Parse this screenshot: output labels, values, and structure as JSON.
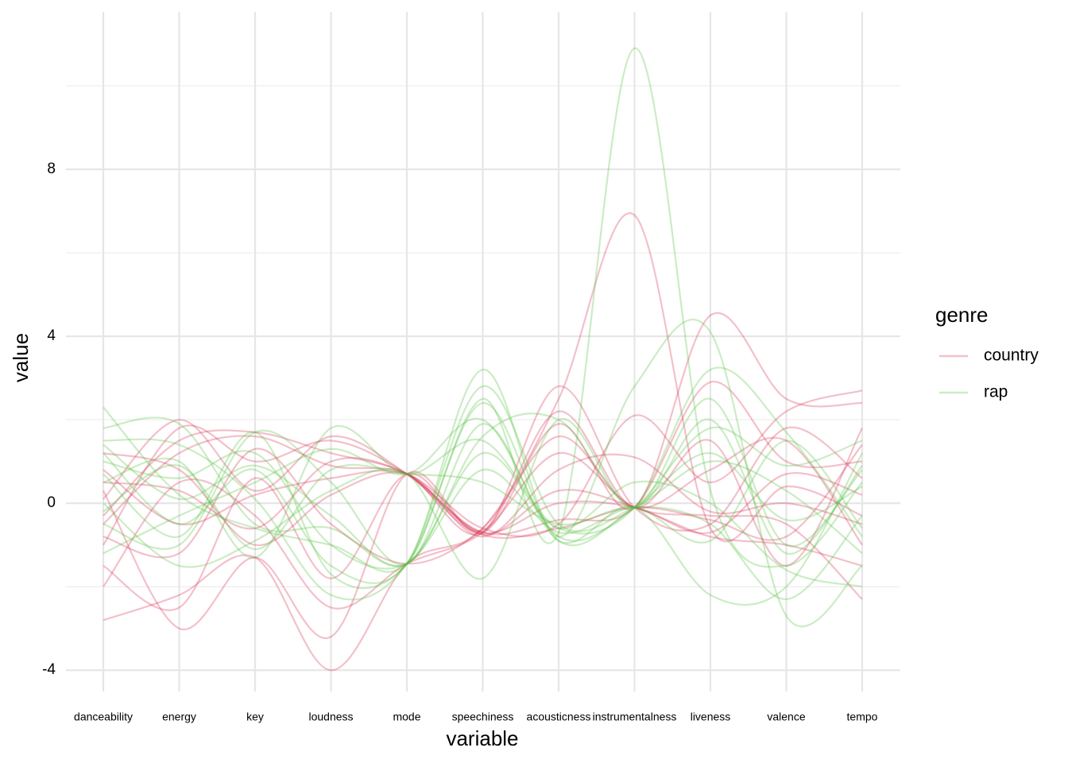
{
  "chart_data": {
    "type": "parallel",
    "x_label": "variable",
    "y_label": "value",
    "legend_title": "genre",
    "categories": [
      "danceability",
      "energy",
      "key",
      "loudness",
      "mode",
      "speechiness",
      "acousticness",
      "instrumentalness",
      "liveness",
      "valence",
      "tempo"
    ],
    "ylim": [
      -4.51,
      11.77
    ],
    "yticks": [
      -4,
      0,
      4,
      8
    ],
    "minor_yticks": [
      -2,
      2,
      6,
      10
    ],
    "grid": true,
    "opacity": 0.3,
    "legend": "right",
    "series": [
      {
        "name": "country",
        "color": "#d7304f",
        "lines": [
          [
            -0.5,
            1.2,
            1.6,
            0.9,
            0.7,
            -0.7,
            2.8,
            -0.1,
            -0.5,
            1.8,
            0.6
          ],
          [
            -2.8,
            -2.2,
            -1.3,
            -4.0,
            -1.45,
            -0.6,
            2.5,
            6.9,
            -0.6,
            0.4,
            -0.3
          ],
          [
            0.3,
            -3.0,
            -1.3,
            -3.2,
            0.7,
            -0.7,
            1.9,
            -0.1,
            4.5,
            2.5,
            2.4
          ],
          [
            -1.0,
            1.8,
            1.0,
            1.5,
            0.7,
            -0.75,
            0.3,
            -0.1,
            -0.8,
            -1.0,
            -1.5
          ],
          [
            0.8,
            -0.5,
            0.2,
            0.6,
            0.7,
            -0.6,
            -0.5,
            2.1,
            0.5,
            2.2,
            2.7
          ],
          [
            -2.0,
            0.5,
            -0.3,
            -2.5,
            -1.45,
            -0.7,
            1.2,
            -0.1,
            -0.3,
            -0.5,
            -2.3
          ],
          [
            -0.3,
            1.5,
            1.7,
            1.2,
            0.7,
            -0.7,
            -0.4,
            -0.1,
            2.9,
            1.0,
            1.0
          ],
          [
            1.2,
            0.8,
            -1.0,
            0.2,
            0.7,
            -0.8,
            0.8,
            1.1,
            -0.2,
            0.0,
            -0.5
          ],
          [
            -1.5,
            -2.5,
            0.6,
            -1.8,
            0.7,
            -0.65,
            2.2,
            -0.1,
            1.5,
            -1.5,
            1.8
          ],
          [
            0.5,
            0.3,
            -0.6,
            1.0,
            0.7,
            -0.7,
            0.0,
            -0.1,
            -0.7,
            0.7,
            0.2
          ],
          [
            -0.8,
            -1.2,
            1.3,
            -0.5,
            -1.45,
            -0.6,
            1.6,
            -0.1,
            0.8,
            1.5,
            -1.0
          ],
          [
            0.1,
            2.0,
            0.3,
            1.6,
            0.7,
            -0.75,
            -0.6,
            -0.1,
            -0.4,
            -0.8,
            1.4
          ]
        ]
      },
      {
        "name": "rap",
        "color": "#52c03c",
        "lines": [
          [
            2.3,
            0.2,
            -0.6,
            -1.0,
            -1.45,
            2.5,
            -0.7,
            10.9,
            0.3,
            -1.5,
            0.5
          ],
          [
            1.2,
            -0.5,
            0.8,
            -1.5,
            -1.45,
            3.2,
            -0.8,
            2.8,
            4.1,
            -2.7,
            -1.5
          ],
          [
            0.5,
            1.0,
            -1.3,
            1.8,
            0.7,
            1.5,
            -0.6,
            -0.1,
            3.2,
            1.7,
            -0.8
          ],
          [
            -0.5,
            -1.0,
            1.7,
            0.5,
            -1.45,
            1.9,
            -0.9,
            -0.1,
            -2.2,
            -2.0,
            1.2
          ],
          [
            1.5,
            1.4,
            0.1,
            -2.2,
            -1.45,
            2.8,
            -0.5,
            -0.1,
            1.0,
            0.3,
            -1.2
          ],
          [
            0.0,
            -1.5,
            -0.9,
            0.3,
            0.7,
            -1.8,
            2.0,
            -0.1,
            2.5,
            -1.0,
            0.8
          ],
          [
            1.0,
            0.6,
            1.2,
            -1.0,
            -1.45,
            0.8,
            -0.7,
            -0.1,
            -0.5,
            -2.3,
            -0.3
          ],
          [
            -1.2,
            -0.3,
            0.5,
            1.3,
            0.7,
            2.0,
            -0.8,
            -0.1,
            1.8,
            0.9,
            1.5
          ],
          [
            1.8,
            1.9,
            -0.5,
            -0.6,
            -1.45,
            1.2,
            -0.6,
            0.5,
            0.0,
            -1.6,
            -2.0
          ],
          [
            0.7,
            -0.8,
            1.7,
            -1.7,
            -1.45,
            2.4,
            -0.9,
            -0.1,
            1.2,
            -0.4,
            0.4
          ],
          [
            -0.2,
            0.9,
            -1.1,
            0.8,
            0.7,
            0.5,
            -0.5,
            -0.1,
            -0.9,
            1.5,
            -0.6
          ],
          [
            1.4,
            0.1,
            0.9,
            -0.3,
            -1.45,
            1.6,
            2.0,
            -0.1,
            2.0,
            -1.2,
            0.9
          ]
        ]
      }
    ]
  }
}
